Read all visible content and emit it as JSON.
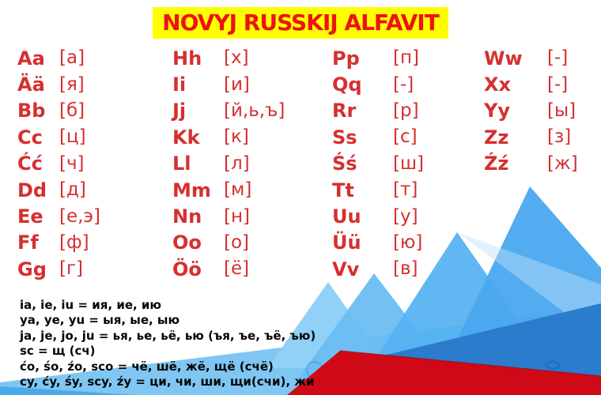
{
  "title": {
    "text": "NOVYJ RUSSKIJ ALFAVIT",
    "bg_color": "#ffff00",
    "text_color": "#ec1313"
  },
  "alphabet": {
    "letter_color": "#d62f2f",
    "columns": [
      {
        "entries": [
          {
            "latin": "Aa",
            "cyr": "[а]"
          },
          {
            "latin": "Ää",
            "cyr": "[я]"
          },
          {
            "latin": "Bb",
            "cyr": "[б]"
          },
          {
            "latin": "Cc",
            "cyr": "[ц]"
          },
          {
            "latin": "Ćć",
            "cyr": "[ч]"
          },
          {
            "latin": "Dd",
            "cyr": "[д]"
          },
          {
            "latin": "Ee",
            "cyr": "[е,э]"
          },
          {
            "latin": "Ff",
            "cyr": "[ф]"
          },
          {
            "latin": "Gg",
            "cyr": "[г]"
          }
        ]
      },
      {
        "entries": [
          {
            "latin": "Hh",
            "cyr": "[х]"
          },
          {
            "latin": "Ii",
            "cyr": "[и]"
          },
          {
            "latin": "Jj",
            "cyr": "[й,ь,ъ]"
          },
          {
            "latin": "Kk",
            "cyr": "[к]"
          },
          {
            "latin": "Ll",
            "cyr": "[л]"
          },
          {
            "latin": "Mm",
            "cyr": "[м]"
          },
          {
            "latin": "Nn",
            "cyr": "[н]"
          },
          {
            "latin": "Oo",
            "cyr": "[о]"
          },
          {
            "latin": "Öö",
            "cyr": "[ё]"
          }
        ]
      },
      {
        "entries": [
          {
            "latin": "Pp",
            "cyr": "[п]"
          },
          {
            "latin": "Qq",
            "cyr": "[-]"
          },
          {
            "latin": "Rr",
            "cyr": "[р]"
          },
          {
            "latin": "Ss",
            "cyr": "[с]"
          },
          {
            "latin": "Śś",
            "cyr": "[ш]"
          },
          {
            "latin": "Tt",
            "cyr": "[т]"
          },
          {
            "latin": "Uu",
            "cyr": "[у]"
          },
          {
            "latin": "Üü",
            "cyr": "[ю]"
          },
          {
            "latin": "Vv",
            "cyr": "[в]"
          }
        ]
      },
      {
        "entries": [
          {
            "latin": "Ww",
            "cyr": "[-]"
          },
          {
            "latin": "Xx",
            "cyr": "[-]"
          },
          {
            "latin": "Yy",
            "cyr": "[ы]"
          },
          {
            "latin": "Zz",
            "cyr": "[з]"
          },
          {
            "latin": "Źź",
            "cyr": "[ж]"
          }
        ]
      }
    ]
  },
  "rules": {
    "lines": [
      "ia, ie, iu = ия, ие, ию",
      "ya, ye, yu = ыя, ые, ыю",
      "ja, je, jo, ju = ья, ье, ьё, ью (ъя, ъе, ъё, ъю)",
      "sc = щ (сч)",
      "ćo, śo, źo, sco = чё, шё, жё, щё (счё)",
      "cy, ćy, śy, scy, źy = ци, чи, ши, щи(счи), жи"
    ]
  },
  "decoration": {
    "colors": {
      "band_light": "#7fc6f3",
      "corner_wedge": "#4aa9ea",
      "peak_far_left": "#92d1f7",
      "peak_small": "#6cbdf2",
      "peak_mid": "#55b1f0",
      "peak_large": "#4aa8ee",
      "dark_quad": "#2b7ccd",
      "ornament_dark": "#1d63b2",
      "ornament_light": "#ffffff",
      "red_band": "#d00916",
      "red_edge": "#a30812"
    }
  }
}
